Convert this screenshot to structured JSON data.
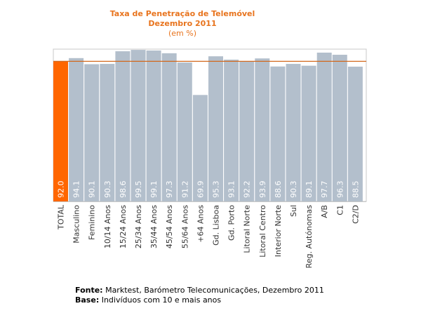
{
  "chart_data": {
    "type": "bar",
    "title": "Taxa de Penetração de Telemóvel",
    "subtitle": "Dezembro 2011",
    "unit_label": "(em %)",
    "categories": [
      "TOTAL",
      "Masculino",
      "Feminino",
      "10/14 Anos",
      "15/24 Anos",
      "25/34 Anos",
      "35/44 Anos",
      "45/54 Anos",
      "55/64 Anos",
      "+64 Anos",
      "Gd. Lisboa",
      "Gd. Porto",
      "Litoral Norte",
      "Litoral Centro",
      "Interior Norte",
      "Sul",
      "Reg. Autónomas",
      "A/B",
      "C1",
      "C2/D"
    ],
    "values": [
      92.0,
      94.1,
      90.1,
      90.3,
      98.6,
      99.5,
      99.1,
      97.3,
      91.2,
      69.9,
      95.3,
      93.1,
      92.2,
      93.9,
      88.6,
      90.3,
      89.1,
      97.7,
      96.3,
      88.5
    ],
    "value_labels": [
      "92.0",
      "94.1",
      "90.1",
      "90.3",
      "98.6",
      "99.5",
      "99.1",
      "97.3",
      "91.2",
      "69.9",
      "95.3",
      "93.1",
      "92.2",
      "93.9",
      "88.6",
      "90.3",
      "89.1",
      "97.7",
      "96.3",
      "88.5"
    ],
    "highlight_index": 0,
    "reference_line": 92.0,
    "ylim": [
      0,
      100
    ],
    "xlabel": "",
    "ylabel": "",
    "grid": false,
    "colors": {
      "highlight_bar": "#ff6600",
      "bar": "#b3bfcc",
      "reference_line": "#d2691e",
      "frame": "#c8c8c8",
      "title": "#e8741e"
    }
  },
  "footer": {
    "source_label": "Fonte:",
    "source_text": "Marktest, Barómetro Telecomunicações, Dezembro 2011",
    "base_label": "Base:",
    "base_text": "Indivíduos com 10 e mais anos"
  }
}
